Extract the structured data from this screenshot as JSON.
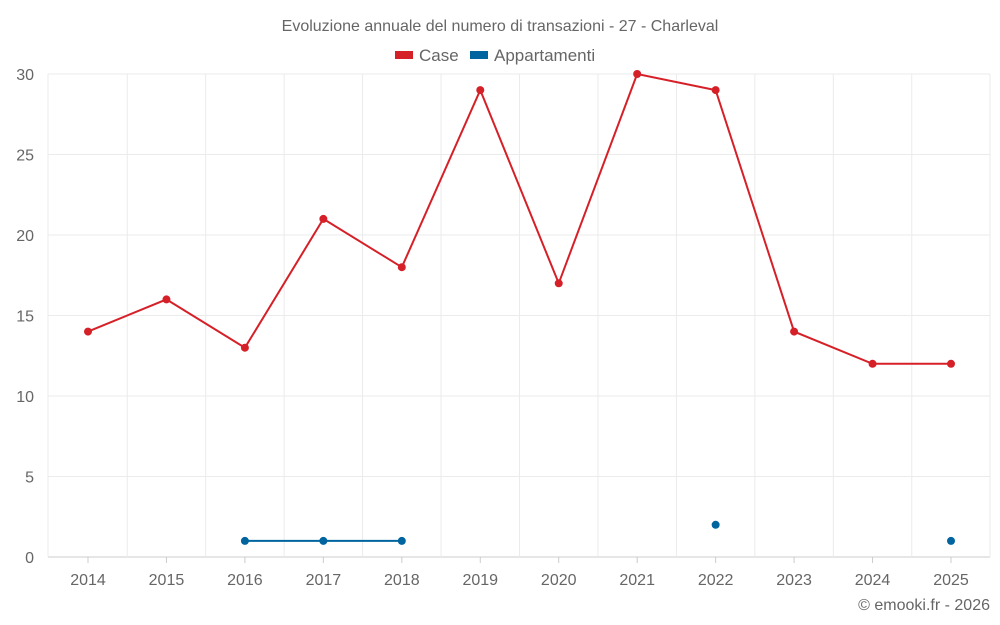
{
  "chart_data": {
    "type": "line",
    "title": "Evoluzione annuale del numero di transazioni - 27 - Charleval",
    "xlabel": "",
    "ylabel": "",
    "categories": [
      "2014",
      "2015",
      "2016",
      "2017",
      "2018",
      "2019",
      "2020",
      "2021",
      "2022",
      "2023",
      "2024",
      "2025"
    ],
    "series": [
      {
        "name": "Case",
        "color": "#d62028",
        "values": [
          14,
          16,
          13,
          21,
          18,
          29,
          17,
          30,
          29,
          14,
          12,
          12
        ]
      },
      {
        "name": "Appartamenti",
        "color": "#00649f",
        "values": [
          null,
          null,
          1,
          1,
          1,
          null,
          null,
          null,
          2,
          null,
          null,
          1
        ]
      }
    ],
    "ylim": [
      0,
      30
    ],
    "yticks": [
      0,
      5,
      10,
      15,
      20,
      25,
      30
    ],
    "grid": true,
    "legend_position": "top-center"
  },
  "footer": {
    "credit": "© emooki.fr - 2026"
  }
}
